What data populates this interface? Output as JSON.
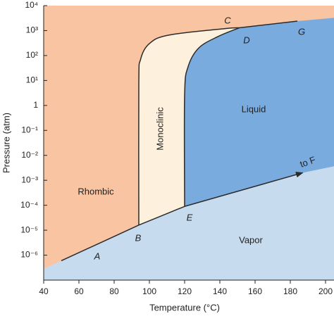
{
  "chart_data": {
    "type": "phase-diagram",
    "x_label": "Temperature (°C)",
    "y_label": "Pressure (atm)",
    "log_y": true,
    "xlim": [
      40,
      200
    ],
    "ylim": [
      1e-07,
      10000
    ],
    "xticks": [
      40,
      60,
      80,
      100,
      120,
      140,
      160,
      180,
      200
    ],
    "yticks": [
      {
        "value": 10000,
        "label": "10⁴"
      },
      {
        "value": 1000,
        "label": "10³"
      },
      {
        "value": 100,
        "label": "10²"
      },
      {
        "value": 10,
        "label": "10¹"
      },
      1,
      {
        "value": 0.1,
        "label": "10⁻¹"
      },
      {
        "value": 0.01,
        "label": "10⁻²"
      },
      {
        "value": 0.001,
        "label": "10⁻³"
      },
      {
        "value": 0.0001,
        "label": "10⁻⁴"
      },
      {
        "value": 1e-05,
        "label": "10⁻⁵"
      },
      {
        "value": 1e-06,
        "label": "10⁻⁶"
      }
    ],
    "line_color": "#2b2b2b",
    "regions": [
      {
        "label": "Rhombic",
        "color": "#f8c4a2"
      },
      {
        "label": "Monoclinic",
        "color": "#fdf1dd"
      },
      {
        "label": "Liquid",
        "color": "#7aabdf"
      },
      {
        "label": "Vapor",
        "color": "#c7dbef"
      }
    ],
    "points": [
      "A",
      "B",
      "C",
      "D",
      "E",
      "G"
    ],
    "arrow_label": "to F",
    "series": [
      {
        "x": [
          50,
          94
        ],
        "values": [
          6e-07,
          1.6e-05
        ]
      },
      {
        "x": [
          94,
          94,
          95,
          100,
          111,
          143,
          151
        ],
        "values": [
          1.6e-05,
          7,
          70,
          300,
          660,
          1200,
          1290
        ]
      },
      {
        "x": [
          94,
          120
        ],
        "values": [
          1.6e-05,
          9e-05
        ]
      },
      {
        "x": [
          120,
          120,
          122,
          128,
          139,
          151
        ],
        "values": [
          9e-05,
          2.7,
          36,
          200,
          580,
          1290
        ]
      },
      {
        "x": [
          151,
          184
        ],
        "values": [
          1290,
          2400
        ]
      },
      {
        "x": [
          120,
          187
        ],
        "values": [
          9e-05,
          0.002
        ]
      }
    ]
  }
}
